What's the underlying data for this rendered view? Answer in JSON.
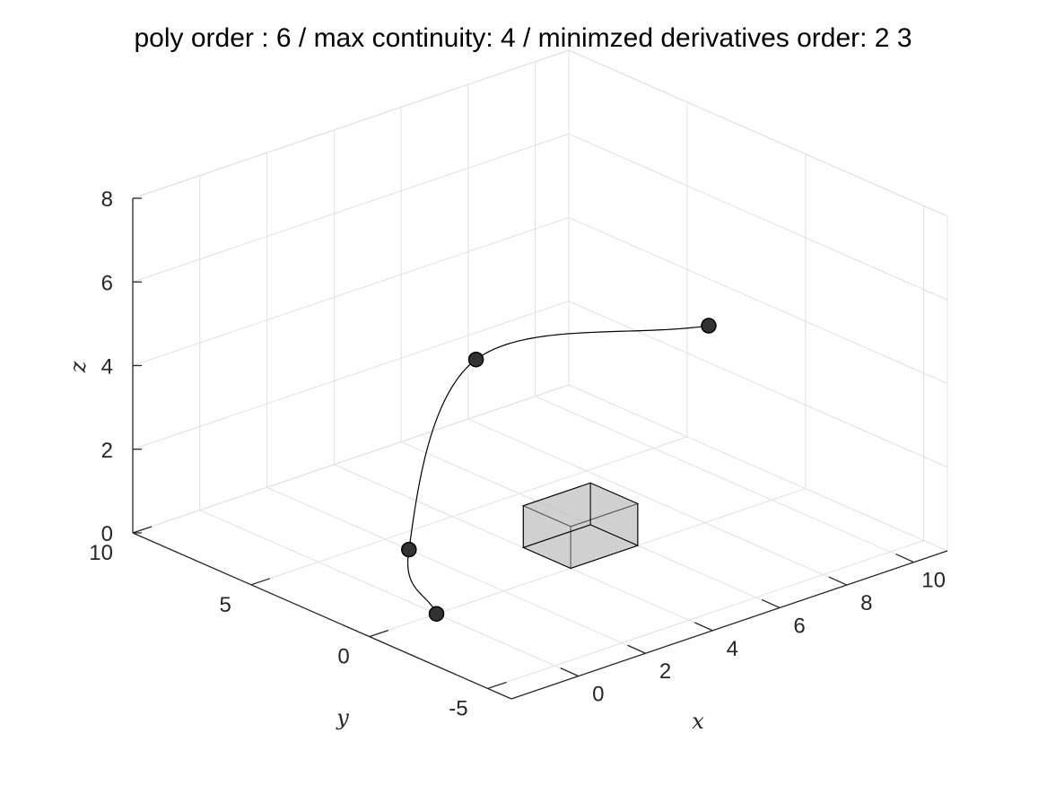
{
  "chart_data": {
    "type": "line3d",
    "title": "poly order : 6 / max continuity: 4 / minimzed derivatives order: 2  3",
    "xlabel": "x",
    "ylabel": "y",
    "zlabel": "z",
    "xlim": [
      -2,
      11
    ],
    "ylim": [
      -6,
      10
    ],
    "zlim": [
      0,
      8
    ],
    "xticks": [
      0,
      2,
      4,
      6,
      8,
      10
    ],
    "yticks": [
      -5,
      0,
      5,
      10
    ],
    "zticks": [
      0,
      2,
      4,
      6,
      8
    ],
    "xtick_labels": [
      "0",
      "2",
      "4",
      "6",
      "8",
      "10"
    ],
    "ytick_labels": [
      "-5",
      "0",
      "5",
      "10"
    ],
    "ztick_labels": [
      "0",
      "2",
      "4",
      "6",
      "8"
    ],
    "grid": true,
    "waypoints": [
      {
        "x": 0,
        "y": 0,
        "z": 0
      },
      {
        "x": 2,
        "y": 4,
        "z": 0
      },
      {
        "x": 4,
        "y": 4,
        "z": 4
      },
      {
        "x": 6,
        "y": -3,
        "z": 6
      }
    ],
    "obstacle": {
      "x_range": [
        4,
        6
      ],
      "y_range": [
        0,
        2
      ],
      "z_range": [
        0,
        1
      ]
    },
    "colors": {
      "trajectory": "#000000",
      "waypoint": "#333333",
      "obstacle": "#bdbdbd",
      "grid": "#e0e0e0",
      "axis": "#262626"
    }
  }
}
